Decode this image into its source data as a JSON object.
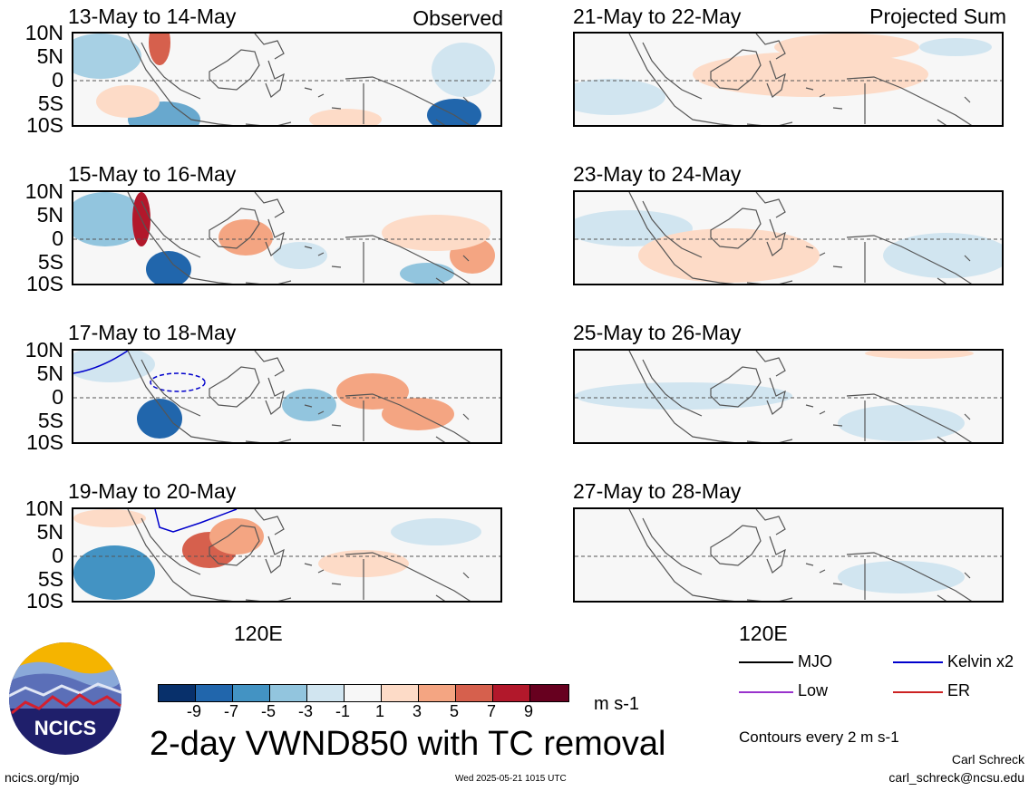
{
  "header": {
    "left_label": "Observed",
    "right_label": "Projected Sum"
  },
  "lat_labels": [
    "10N",
    "5N",
    "0",
    "5S",
    "10S"
  ],
  "lon_label": "120E",
  "panels_left": [
    {
      "title": "13-May to 14-May"
    },
    {
      "title": "15-May to 16-May"
    },
    {
      "title": "17-May to 18-May"
    },
    {
      "title": "19-May to 20-May"
    }
  ],
  "panels_right": [
    {
      "title": "21-May to 22-May"
    },
    {
      "title": "23-May to 24-May"
    },
    {
      "title": "25-May to 26-May"
    },
    {
      "title": "27-May to 28-May"
    }
  ],
  "colorbar": {
    "ticks": [
      "-9",
      "-7",
      "-5",
      "-3",
      "-1",
      "1",
      "3",
      "5",
      "7",
      "9"
    ],
    "colors": [
      "#08306b",
      "#2166ac",
      "#4393c3",
      "#92c5de",
      "#d1e5f0",
      "#f7f7f7",
      "#fddbc7",
      "#f4a582",
      "#d6604d",
      "#b2182b",
      "#67001f"
    ],
    "units": "m s-1"
  },
  "main_title": "2-day VWND850 with TC removal",
  "legend": {
    "items": [
      {
        "label": "MJO",
        "color": "#000000"
      },
      {
        "label": "Kelvin x2",
        "color": "#0000cc"
      },
      {
        "label": "Low",
        "color": "#9933cc"
      },
      {
        "label": "ER",
        "color": "#cc2222"
      }
    ],
    "note": "Contours every 2 m s-1"
  },
  "logo": {
    "text": "NCICS"
  },
  "footer": {
    "url": "ncics.org/mjo",
    "timestamp": "Wed 2025-05-21 1015 UTC",
    "author": "Carl Schreck",
    "email": "carl_schreck@ncsu.edu"
  }
}
